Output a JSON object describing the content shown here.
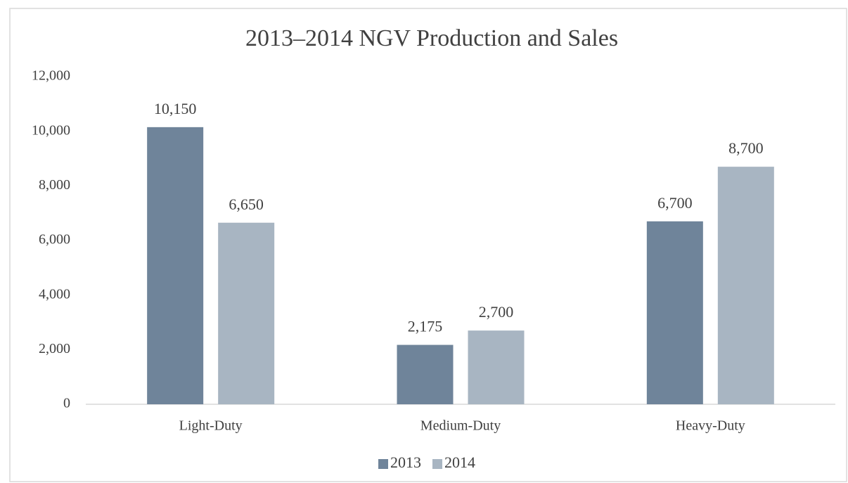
{
  "chart_data": {
    "type": "bar",
    "title": "2013–2014 NGV Production and Sales",
    "categories": [
      "Light-Duty",
      "Medium-Duty",
      "Heavy-Duty"
    ],
    "series": [
      {
        "name": "2013",
        "color": "#6f849a",
        "values": [
          10150,
          2175,
          6700
        ],
        "value_labels": [
          "10,150",
          "2,175",
          "6,700"
        ]
      },
      {
        "name": "2014",
        "color": "#a8b5c2",
        "values": [
          6650,
          2700,
          8700
        ],
        "value_labels": [
          "6,650",
          "2,700",
          "8,700"
        ]
      }
    ],
    "ylim": [
      0,
      12000
    ],
    "yticks": [
      0,
      {
        "value": 2000,
        "label": "2,000"
      },
      {
        "value": 4000,
        "label": "4,000"
      },
      {
        "value": 6000,
        "label": "6,000"
      },
      {
        "value": 8000,
        "label": "8,000"
      },
      {
        "value": 10000,
        "label": "10,000"
      },
      {
        "value": 12000,
        "label": "12,000"
      }
    ],
    "grid": false,
    "legend": "bottom"
  }
}
